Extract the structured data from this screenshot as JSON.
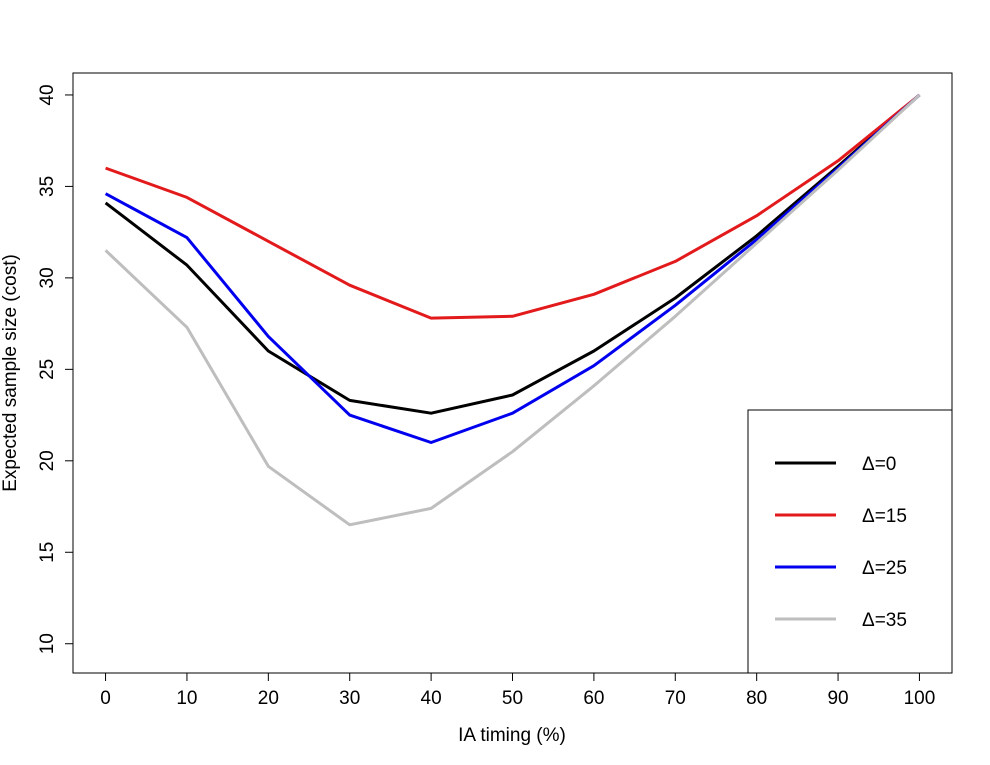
{
  "chart_data": {
    "type": "line",
    "title": "",
    "xlabel": "IA timing (%)",
    "ylabel": "Expected sample size (cost)",
    "x": [
      0,
      10,
      20,
      30,
      40,
      50,
      60,
      70,
      80,
      90,
      100
    ],
    "xticks": [
      0,
      10,
      20,
      30,
      40,
      50,
      60,
      70,
      80,
      90,
      100
    ],
    "yticks": [
      10,
      15,
      20,
      25,
      30,
      35,
      40
    ],
    "xlim": [
      -4,
      104
    ],
    "ylim": [
      8.4,
      41.2
    ],
    "grid": false,
    "legend_position": "bottom-right",
    "series": [
      {
        "name": "Δ=0",
        "color": "#000000",
        "values": [
          34.1,
          30.7,
          26.0,
          23.3,
          22.6,
          23.6,
          26.0,
          28.9,
          32.3,
          36.1,
          40.0
        ]
      },
      {
        "name": "Δ=15",
        "color": "#e31a1c",
        "values": [
          36.0,
          34.4,
          32.0,
          29.6,
          27.8,
          27.9,
          29.1,
          30.9,
          33.4,
          36.4,
          40.0
        ]
      },
      {
        "name": "Δ=25",
        "color": "#0000ee",
        "values": [
          34.6,
          32.2,
          26.8,
          22.5,
          21.0,
          22.6,
          25.2,
          28.5,
          32.1,
          36.0,
          40.0
        ]
      },
      {
        "name": "Δ=35",
        "color": "#bebebe",
        "values": [
          31.5,
          27.3,
          19.7,
          16.5,
          17.4,
          20.5,
          24.1,
          27.9,
          31.9,
          35.9,
          40.0
        ]
      }
    ]
  }
}
